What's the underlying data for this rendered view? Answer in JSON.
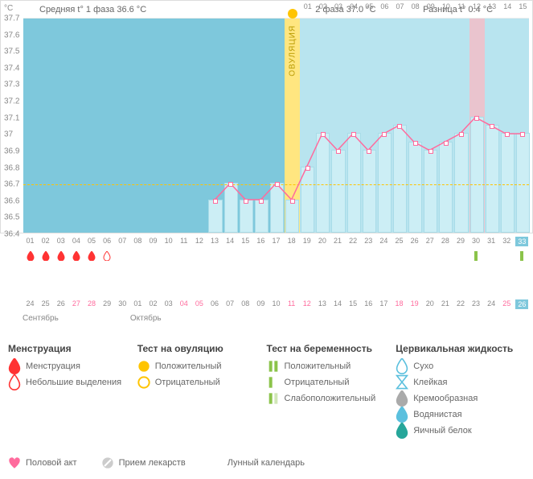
{
  "yaxis": {
    "title": "°C",
    "min": 36.4,
    "max": 37.7,
    "step": 0.1,
    "ticks": [
      37.7,
      37.6,
      37.5,
      37.4,
      37.3,
      37.2,
      37.1,
      37,
      36.9,
      36.8,
      36.7,
      36.6,
      36.5,
      36.4
    ]
  },
  "header": {
    "phase1_label": "Средняя t° 1 фаза 36.6 °C",
    "phase2_label": "2 фаза 37.0 °C",
    "diff_label": "Разница t° 0.4 °C"
  },
  "ovulation": {
    "day": 18,
    "label": "ОВУЛЯЦИЯ"
  },
  "phase1_days": 18,
  "total_days": 33,
  "avg_line_temp": 36.7,
  "highlight_day": 30,
  "phase2_day_labels": [
    "01",
    "02",
    "03",
    "04",
    "05",
    "06",
    "07",
    "08",
    "09",
    "10",
    "11",
    "12",
    "13",
    "14",
    "15"
  ],
  "temps": [
    null,
    null,
    null,
    null,
    null,
    null,
    null,
    null,
    null,
    null,
    null,
    null,
    36.6,
    36.7,
    36.6,
    36.6,
    36.7,
    36.6,
    36.8,
    37.0,
    36.9,
    37.0,
    36.9,
    37.0,
    37.05,
    36.95,
    36.9,
    36.95,
    37.0,
    37.1,
    37.05,
    37.0,
    37.0
  ],
  "cycle_days": [
    "01",
    "02",
    "03",
    "04",
    "05",
    "06",
    "07",
    "08",
    "09",
    "10",
    "11",
    "12",
    "13",
    "14",
    "15",
    "16",
    "17",
    "18",
    "19",
    "20",
    "21",
    "22",
    "23",
    "24",
    "25",
    "26",
    "27",
    "28",
    "29",
    "30",
    "31",
    "32",
    "33"
  ],
  "today_cycle_idx": 32,
  "menstruation_days": [
    0,
    1,
    2,
    3,
    4,
    5
  ],
  "green_marker_days": [
    29,
    32
  ],
  "calendar": {
    "days": [
      "24",
      "25",
      "26",
      "27",
      "28",
      "29",
      "30",
      "01",
      "02",
      "03",
      "04",
      "05",
      "06",
      "07",
      "08",
      "09",
      "10",
      "11",
      "12",
      "13",
      "14",
      "15",
      "16",
      "17",
      "18",
      "19",
      "20",
      "21",
      "22",
      "23",
      "24",
      "25",
      "26"
    ],
    "weekend_idx": [
      3,
      4,
      10,
      11,
      17,
      18,
      24,
      25,
      31,
      32
    ],
    "today_idx": 32,
    "month1": {
      "label": "Сентябрь",
      "start_idx": 0
    },
    "month2": {
      "label": "Октябрь",
      "start_idx": 7
    }
  },
  "legend": {
    "menstruation": {
      "title": "Менструация",
      "items": [
        {
          "icon": "drop-red",
          "label": "Менструация"
        },
        {
          "icon": "drop-outline",
          "label": "Небольшие выделения"
        }
      ]
    },
    "ovulation_test": {
      "title": "Тест на овуляцию",
      "items": [
        {
          "icon": "circle-yellow",
          "label": "Положительный"
        },
        {
          "icon": "circle-yellow-outline",
          "label": "Отрицательный"
        }
      ]
    },
    "pregnancy_test": {
      "title": "Тест на беременность",
      "items": [
        {
          "icon": "bars-green-2",
          "label": "Положительный"
        },
        {
          "icon": "bars-green-1",
          "label": "Отрицательный"
        },
        {
          "icon": "bars-green-1b",
          "label": "Слабоположительный"
        }
      ]
    },
    "cervical": {
      "title": "Цервикальная жидкость",
      "items": [
        {
          "icon": "drop-blue-outline",
          "label": "Сухо"
        },
        {
          "icon": "hourglass",
          "label": "Клейкая"
        },
        {
          "icon": "drop-gray",
          "label": "Кремообразная"
        },
        {
          "icon": "drop-blue",
          "label": "Водянистая"
        },
        {
          "icon": "drop-teal",
          "label": "Яичный белок"
        }
      ]
    }
  },
  "footer": [
    {
      "icon": "heart",
      "label": "Половой акт"
    },
    {
      "icon": "pill",
      "label": "Прием лекарств"
    },
    {
      "icon": "moon",
      "label": "Лунный календарь"
    }
  ],
  "colors": {
    "phase1_bg": "#7ec8dc",
    "phase2_bg": "#b8e4ef",
    "ovulation": "#ffe680",
    "highlight": "#ffb6c1",
    "line": "#ff6b9d",
    "bar": "#cceef5",
    "drop_red": "#ff3333",
    "green": "#8bc34a",
    "yellow": "#ffc400",
    "heart": "#ff6b9d",
    "moon": "#ffa500",
    "blue": "#5bc0de",
    "gray": "#aaa"
  }
}
